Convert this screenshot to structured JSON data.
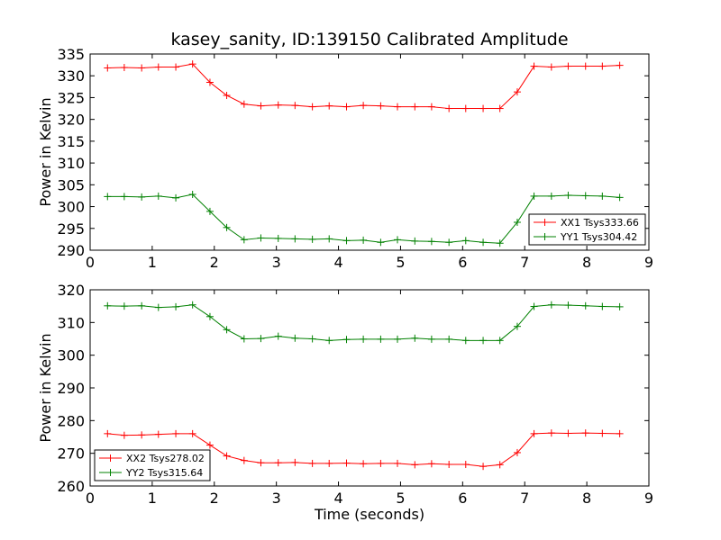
{
  "chart_data": [
    {
      "type": "line",
      "title": "kasey_sanity, ID:139150 Calibrated Amplitude",
      "xlabel": "",
      "ylabel": "Power in Kelvin",
      "xlim": [
        0,
        9
      ],
      "ylim": [
        290,
        335
      ],
      "xticks": [
        "0",
        "1",
        "2",
        "3",
        "4",
        "5",
        "6",
        "7",
        "8",
        "9"
      ],
      "yticks": [
        "290",
        "295",
        "300",
        "305",
        "310",
        "315",
        "320",
        "325",
        "330",
        "335"
      ],
      "legend_position": "lower-right",
      "series": [
        {
          "name": "XX1 Tsys333.66",
          "color": "#ff0000",
          "marker": "plus",
          "x": [
            0.28,
            0.55,
            0.83,
            1.1,
            1.38,
            1.65,
            1.93,
            2.2,
            2.48,
            2.75,
            3.03,
            3.3,
            3.58,
            3.85,
            4.13,
            4.4,
            4.68,
            4.95,
            5.23,
            5.5,
            5.78,
            6.05,
            6.33,
            6.6,
            6.88,
            7.15,
            7.43,
            7.7,
            7.98,
            8.25,
            8.53
          ],
          "y": [
            331.8,
            331.9,
            331.8,
            332.0,
            332.0,
            332.7,
            328.5,
            325.5,
            323.5,
            323.1,
            323.3,
            323.2,
            322.9,
            323.1,
            322.9,
            323.2,
            323.1,
            322.9,
            322.9,
            322.9,
            322.5,
            322.5,
            322.5,
            322.5,
            326.3,
            332.2,
            332.0,
            332.2,
            332.2,
            332.2,
            332.4
          ]
        },
        {
          "name": "YY1 Tsys304.42",
          "color": "#008000",
          "marker": "plus",
          "x": [
            0.28,
            0.55,
            0.83,
            1.1,
            1.38,
            1.65,
            1.93,
            2.2,
            2.48,
            2.75,
            3.03,
            3.3,
            3.58,
            3.85,
            4.13,
            4.4,
            4.68,
            4.95,
            5.23,
            5.5,
            5.78,
            6.05,
            6.33,
            6.6,
            6.88,
            7.15,
            7.43,
            7.7,
            7.98,
            8.25,
            8.53
          ],
          "y": [
            302.3,
            302.3,
            302.2,
            302.4,
            302.0,
            302.8,
            298.9,
            295.2,
            292.4,
            292.8,
            292.7,
            292.6,
            292.5,
            292.6,
            292.2,
            292.3,
            291.8,
            292.4,
            292.1,
            292.0,
            291.8,
            292.2,
            291.8,
            291.6,
            296.4,
            302.4,
            302.4,
            302.6,
            302.5,
            302.4,
            302.1
          ]
        }
      ]
    },
    {
      "type": "line",
      "title": "",
      "xlabel": "Time (seconds)",
      "ylabel": "Power in Kelvin",
      "xlim": [
        0,
        9
      ],
      "ylim": [
        260,
        320
      ],
      "xticks": [
        "0",
        "1",
        "2",
        "3",
        "4",
        "5",
        "6",
        "7",
        "8",
        "9"
      ],
      "yticks": [
        "260",
        "270",
        "280",
        "290",
        "300",
        "310",
        "320"
      ],
      "legend_position": "lower-left",
      "series": [
        {
          "name": "XX2 Tsys278.02",
          "color": "#ff0000",
          "marker": "plus",
          "x": [
            0.28,
            0.55,
            0.83,
            1.1,
            1.38,
            1.65,
            1.93,
            2.2,
            2.48,
            2.75,
            3.03,
            3.3,
            3.58,
            3.85,
            4.13,
            4.4,
            4.68,
            4.95,
            5.23,
            5.5,
            5.78,
            6.05,
            6.33,
            6.6,
            6.88,
            7.15,
            7.43,
            7.7,
            7.98,
            8.25,
            8.53
          ],
          "y": [
            276.0,
            275.5,
            275.6,
            275.8,
            276.0,
            276.0,
            272.5,
            269.2,
            267.8,
            267.1,
            267.1,
            267.2,
            266.9,
            266.9,
            267.0,
            266.8,
            266.9,
            266.9,
            266.5,
            266.8,
            266.6,
            266.6,
            266.0,
            266.5,
            270.2,
            276.0,
            276.2,
            276.1,
            276.2,
            276.1,
            276.0
          ]
        },
        {
          "name": "YY2 Tsys315.64",
          "color": "#008000",
          "marker": "plus",
          "x": [
            0.28,
            0.55,
            0.83,
            1.1,
            1.38,
            1.65,
            1.93,
            2.2,
            2.48,
            2.75,
            3.03,
            3.3,
            3.58,
            3.85,
            4.13,
            4.4,
            4.68,
            4.95,
            5.23,
            5.5,
            5.78,
            6.05,
            6.33,
            6.6,
            6.88,
            7.15,
            7.43,
            7.7,
            7.98,
            8.25,
            8.53
          ],
          "y": [
            315.1,
            315.0,
            315.1,
            314.6,
            314.8,
            315.4,
            311.8,
            307.8,
            305.0,
            305.1,
            305.8,
            305.2,
            305.0,
            304.5,
            304.8,
            304.9,
            304.9,
            304.9,
            305.2,
            304.9,
            304.9,
            304.5,
            304.5,
            304.5,
            308.8,
            314.9,
            315.4,
            315.3,
            315.1,
            314.9,
            314.8
          ]
        }
      ]
    }
  ]
}
